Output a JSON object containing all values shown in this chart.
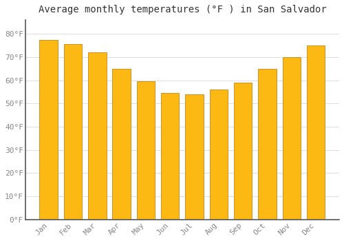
{
  "title": "Average monthly temperatures (°F ) in San Salvador",
  "months": [
    "Jan",
    "Feb",
    "Mar",
    "Apr",
    "May",
    "Jun",
    "Jul",
    "Aug",
    "Sep",
    "Oct",
    "Nov",
    "Dec"
  ],
  "values": [
    77.5,
    75.5,
    72.0,
    65.0,
    59.5,
    54.5,
    54.0,
    56.0,
    59.0,
    65.0,
    70.0,
    75.0
  ],
  "bar_color_top": "#FDB913",
  "bar_color_bottom": "#F5A623",
  "bar_edge_color": "#C8861A",
  "background_color": "#FFFFFF",
  "grid_color": "#DDDDDD",
  "text_color": "#888888",
  "ylim": [
    0,
    86
  ],
  "yticks": [
    0,
    10,
    20,
    30,
    40,
    50,
    60,
    70,
    80
  ],
  "title_fontsize": 10,
  "tick_fontsize": 8,
  "left_spine_color": "#555555"
}
